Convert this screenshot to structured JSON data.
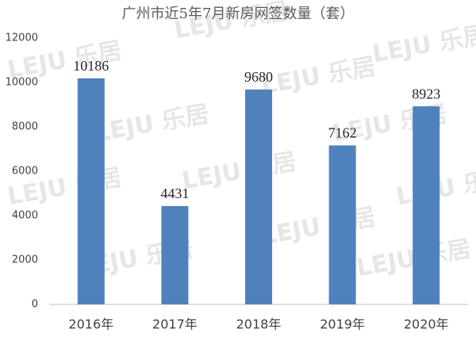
{
  "chart_data": {
    "type": "bar",
    "title": "广州市近5年7月新房网签数量（套）",
    "categories": [
      "2016年",
      "2017年",
      "2018年",
      "2019年",
      "2020年"
    ],
    "values": [
      10186,
      4431,
      9680,
      7162,
      8923
    ],
    "color": "#4f81bd",
    "ylim": [
      0,
      12000
    ],
    "yticks": [
      0,
      2000,
      4000,
      6000,
      8000,
      10000,
      12000
    ],
    "grid": false,
    "watermark": "LEJU 乐居"
  }
}
